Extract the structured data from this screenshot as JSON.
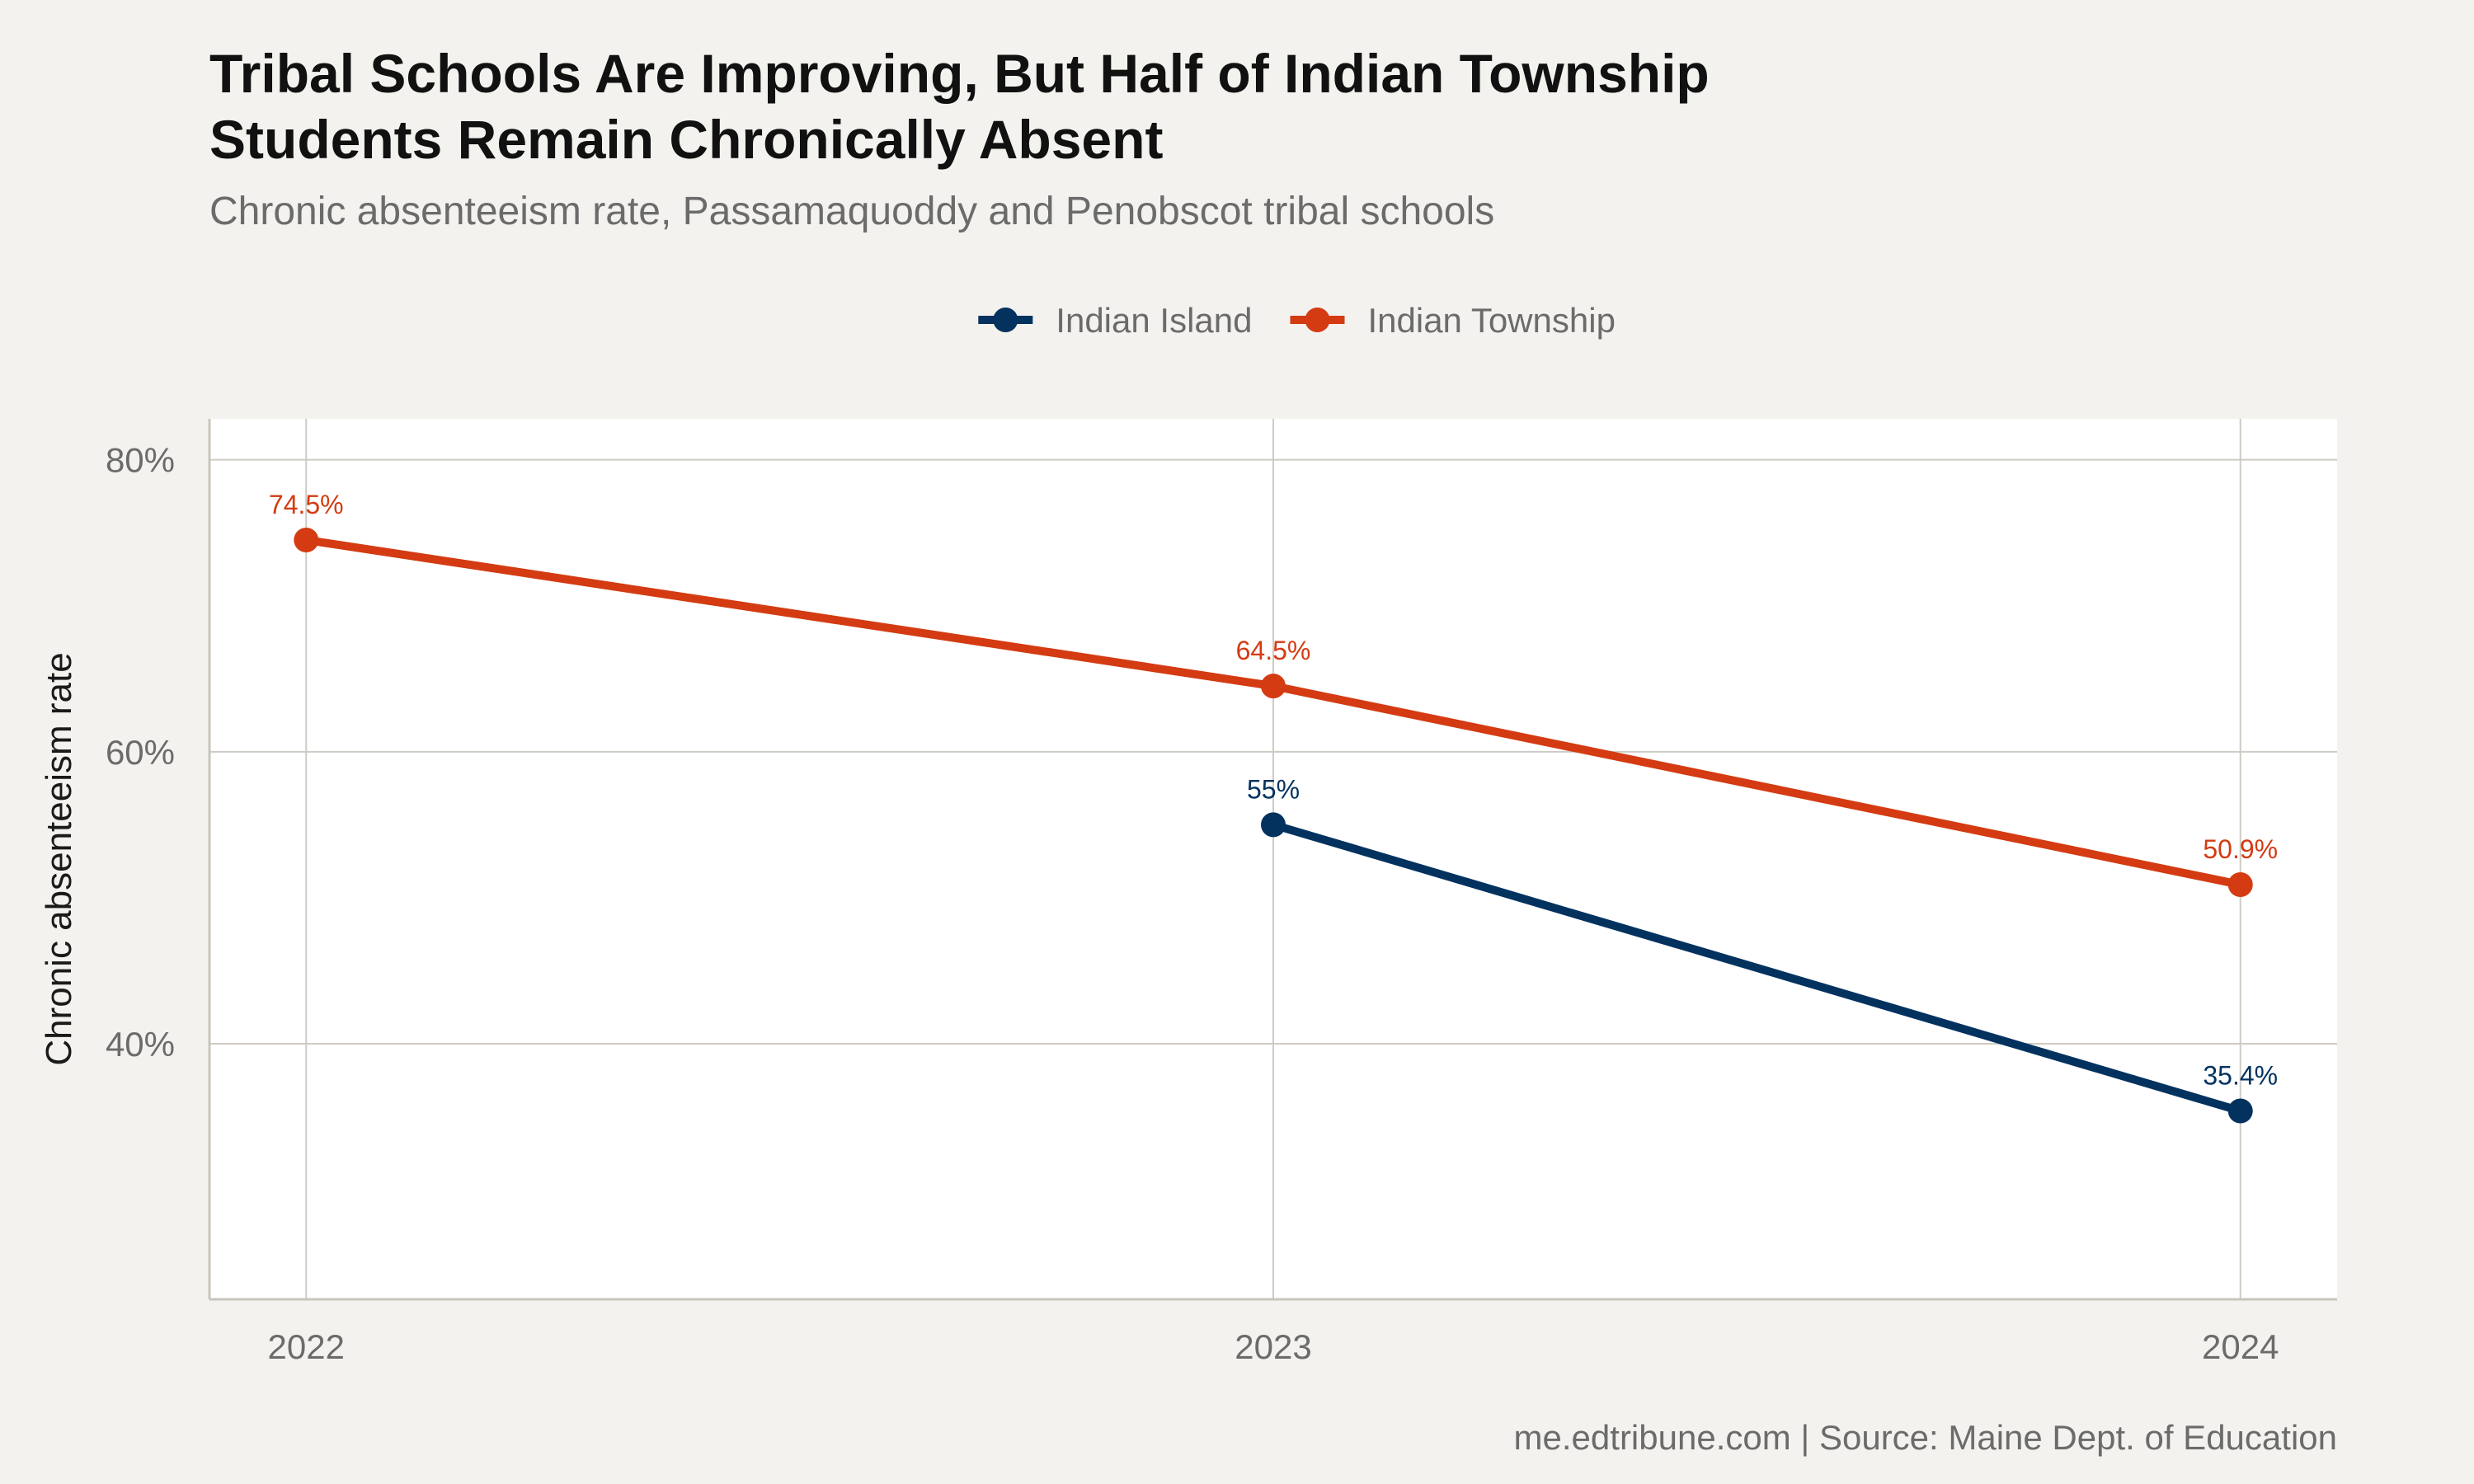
{
  "chart_data": {
    "type": "line",
    "title_lines": [
      "Tribal Schools Are Improving, But Half of Indian Township",
      "Students Remain Chronically Absent"
    ],
    "subtitle": "Chronic absenteeism rate, Passamaquoddy and Penobscot tribal schools",
    "ylabel": "Chronic absenteeism rate",
    "xlabel": "",
    "x": [
      "2022",
      "2023",
      "2024"
    ],
    "xlim": [
      2021.9,
      2024.1
    ],
    "ylim": [
      22.5,
      82.8
    ],
    "yticks": [
      {
        "value": 40,
        "label": "40%"
      },
      {
        "value": 60,
        "label": "60%"
      },
      {
        "value": 80,
        "label": "80%"
      }
    ],
    "series": [
      {
        "name": "Indian Island",
        "color": "#03325f",
        "points": [
          {
            "x": "2023",
            "y": 55.0,
            "label": "55%"
          },
          {
            "x": "2024",
            "y": 35.4,
            "label": "35.4%"
          }
        ]
      },
      {
        "name": "Indian Township",
        "color": "#d43b12",
        "points": [
          {
            "x": "2022",
            "y": 74.5,
            "label": "74.5%"
          },
          {
            "x": "2023",
            "y": 64.5,
            "label": "64.5%"
          },
          {
            "x": "2024",
            "y": 50.9,
            "label": "50.9%"
          }
        ]
      }
    ],
    "legend_position": "top",
    "grid": true,
    "caption": "me.edtribune.com | Source: Maine Dept. of Education"
  }
}
